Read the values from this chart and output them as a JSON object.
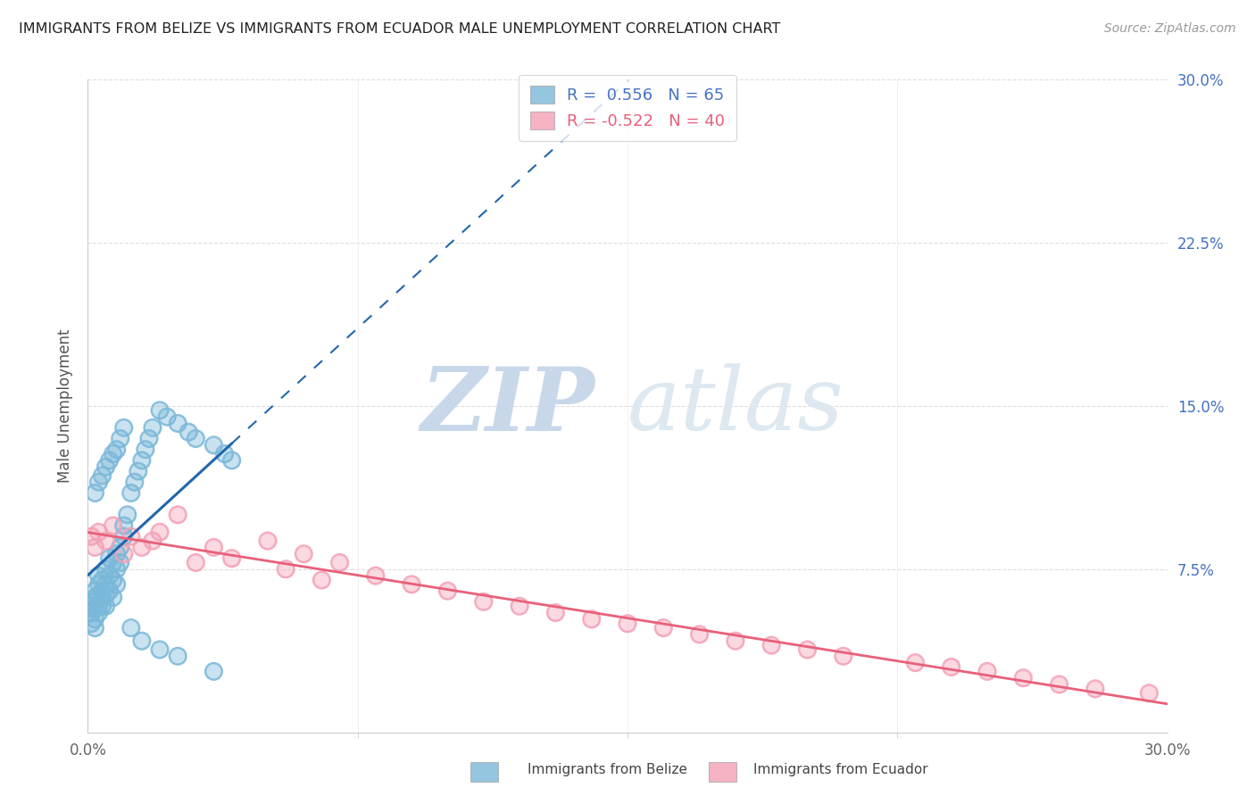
{
  "title": "IMMIGRANTS FROM BELIZE VS IMMIGRANTS FROM ECUADOR MALE UNEMPLOYMENT CORRELATION CHART",
  "source": "Source: ZipAtlas.com",
  "ylabel": "Male Unemployment",
  "legend_label1": "Immigrants from Belize",
  "legend_label2": "Immigrants from Ecuador",
  "R1": 0.556,
  "N1": 65,
  "R2": -0.522,
  "N2": 40,
  "color_belize": "#7ab8d9",
  "color_ecuador": "#f4a0b5",
  "color_trend_belize": "#2166ac",
  "color_trend_ecuador": "#e8607a",
  "xlim": [
    0.0,
    0.3
  ],
  "ylim": [
    0.0,
    0.3
  ],
  "xtick_vals": [
    0.0,
    0.3
  ],
  "xtick_labels": [
    "0.0%",
    "30.0%"
  ],
  "ytick_vals": [
    0.075,
    0.15,
    0.225,
    0.3
  ],
  "ytick_labels": [
    "7.5%",
    "15.0%",
    "22.5%",
    "30.0%"
  ],
  "watermark_zip": "ZIP",
  "watermark_atlas": "atlas",
  "belize_x": [
    0.001,
    0.001,
    0.001,
    0.001,
    0.002,
    0.002,
    0.002,
    0.002,
    0.002,
    0.003,
    0.003,
    0.003,
    0.003,
    0.003,
    0.004,
    0.004,
    0.004,
    0.004,
    0.005,
    0.005,
    0.005,
    0.005,
    0.006,
    0.006,
    0.006,
    0.007,
    0.007,
    0.007,
    0.008,
    0.008,
    0.008,
    0.009,
    0.009,
    0.01,
    0.01,
    0.011,
    0.012,
    0.013,
    0.014,
    0.015,
    0.016,
    0.017,
    0.018,
    0.02,
    0.022,
    0.025,
    0.028,
    0.03,
    0.035,
    0.038,
    0.04,
    0.002,
    0.003,
    0.004,
    0.005,
    0.006,
    0.007,
    0.008,
    0.009,
    0.01,
    0.012,
    0.015,
    0.02,
    0.025,
    0.035
  ],
  "belize_y": [
    0.055,
    0.06,
    0.05,
    0.058,
    0.062,
    0.057,
    0.065,
    0.052,
    0.048,
    0.068,
    0.063,
    0.058,
    0.072,
    0.055,
    0.07,
    0.065,
    0.062,
    0.058,
    0.075,
    0.068,
    0.063,
    0.058,
    0.072,
    0.08,
    0.065,
    0.07,
    0.078,
    0.062,
    0.082,
    0.075,
    0.068,
    0.085,
    0.078,
    0.09,
    0.095,
    0.1,
    0.11,
    0.115,
    0.12,
    0.125,
    0.13,
    0.135,
    0.14,
    0.148,
    0.145,
    0.142,
    0.138,
    0.135,
    0.132,
    0.128,
    0.125,
    0.11,
    0.115,
    0.118,
    0.122,
    0.125,
    0.128,
    0.13,
    0.135,
    0.14,
    0.048,
    0.042,
    0.038,
    0.035,
    0.028
  ],
  "ecuador_x": [
    0.001,
    0.002,
    0.003,
    0.005,
    0.007,
    0.01,
    0.012,
    0.015,
    0.018,
    0.02,
    0.025,
    0.03,
    0.035,
    0.04,
    0.05,
    0.055,
    0.06,
    0.065,
    0.07,
    0.08,
    0.09,
    0.1,
    0.11,
    0.12,
    0.13,
    0.14,
    0.15,
    0.16,
    0.17,
    0.18,
    0.19,
    0.2,
    0.21,
    0.23,
    0.24,
    0.25,
    0.26,
    0.27,
    0.28,
    0.295
  ],
  "ecuador_y": [
    0.09,
    0.085,
    0.092,
    0.088,
    0.095,
    0.082,
    0.09,
    0.085,
    0.088,
    0.092,
    0.1,
    0.078,
    0.085,
    0.08,
    0.088,
    0.075,
    0.082,
    0.07,
    0.078,
    0.072,
    0.068,
    0.065,
    0.06,
    0.058,
    0.055,
    0.052,
    0.05,
    0.048,
    0.045,
    0.042,
    0.04,
    0.038,
    0.035,
    0.032,
    0.03,
    0.028,
    0.025,
    0.022,
    0.02,
    0.018
  ]
}
